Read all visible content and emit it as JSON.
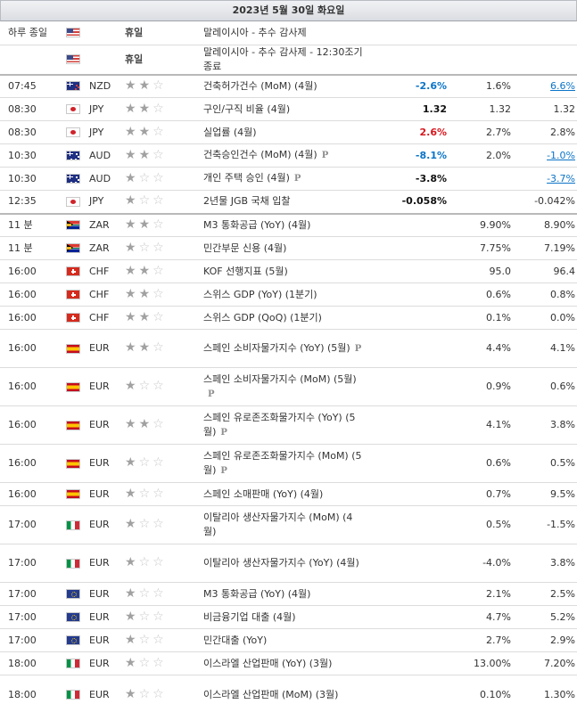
{
  "day_header": "2023년 5월 30일 화요일",
  "rows": [
    {
      "time": "하루 종일",
      "flag": "us",
      "currency": "",
      "stars": 0,
      "holiday": "휴일",
      "event": "말레이시아 - 추수 감사제",
      "pre": false,
      "actual": "",
      "actual_class": "",
      "forecast": "",
      "previous": "",
      "previous_link": false,
      "row_class": "r26"
    },
    {
      "time": "",
      "flag": "us",
      "currency": "",
      "stars": 0,
      "holiday": "휴일",
      "event": "말레이시아 - 추수 감사제 - 12:30조기 종료",
      "pre": false,
      "actual": "",
      "actual_class": "",
      "forecast": "",
      "previous": "",
      "previous_link": false,
      "row_class": "r27 sep"
    },
    {
      "time": "07:45",
      "flag": "nz",
      "currency": "NZD",
      "stars": 2,
      "holiday": "",
      "event": "건축허가건수 (MoM) (4월)",
      "pre": false,
      "actual": "-2.6%",
      "actual_class": "pos",
      "forecast": "1.6%",
      "previous": "6.6%",
      "previous_link": true,
      "row_class": "r26"
    },
    {
      "time": "08:30",
      "flag": "jp",
      "currency": "JPY",
      "stars": 2,
      "holiday": "",
      "event": "구인/구직 비율 (4월)",
      "pre": false,
      "actual": "1.32",
      "actual_class": "neutral",
      "forecast": "1.32",
      "previous": "1.32",
      "previous_link": false,
      "row_class": "r26"
    },
    {
      "time": "08:30",
      "flag": "jp",
      "currency": "JPY",
      "stars": 2,
      "holiday": "",
      "event": "실업률 (4월)",
      "pre": false,
      "actual": "2.6%",
      "actual_class": "neg",
      "forecast": "2.7%",
      "previous": "2.8%",
      "previous_link": false,
      "row_class": "r26"
    },
    {
      "time": "10:30",
      "flag": "au",
      "currency": "AUD",
      "stars": 2,
      "holiday": "",
      "event": "건축승인건수 (MoM) (4월)",
      "pre": true,
      "actual": "-8.1%",
      "actual_class": "pos",
      "forecast": "2.0%",
      "previous": "-1.0%",
      "previous_link": true,
      "row_class": "r26"
    },
    {
      "time": "10:30",
      "flag": "au",
      "currency": "AUD",
      "stars": 1,
      "holiday": "",
      "event": "개인 주택 승인 (4월)",
      "pre": true,
      "actual": "-3.8%",
      "actual_class": "neutral",
      "forecast": "",
      "previous": "-3.7%",
      "previous_link": true,
      "row_class": "r26"
    },
    {
      "time": "12:35",
      "flag": "jp",
      "currency": "JPY",
      "stars": 1,
      "holiday": "",
      "event": "2년물 JGB 국채 입찰",
      "pre": false,
      "actual": "-0.058%",
      "actual_class": "neutral",
      "forecast": "",
      "previous": "-0.042%",
      "previous_link": false,
      "row_class": "r26 sep"
    },
    {
      "time": "11 분",
      "flag": "za",
      "currency": "ZAR",
      "stars": 2,
      "holiday": "",
      "event": "M3 통화공급 (YoY) (4월)",
      "pre": false,
      "actual": "",
      "actual_class": "",
      "forecast": "9.90%",
      "previous": "8.90%",
      "previous_link": false,
      "row_class": "r26"
    },
    {
      "time": "11 분",
      "flag": "za",
      "currency": "ZAR",
      "stars": 1,
      "holiday": "",
      "event": "민간부문 신용 (4월)",
      "pre": false,
      "actual": "",
      "actual_class": "",
      "forecast": "7.75%",
      "previous": "7.19%",
      "previous_link": false,
      "row_class": "r26"
    },
    {
      "time": "16:00",
      "flag": "ch",
      "currency": "CHF",
      "stars": 2,
      "holiday": "",
      "event": "KOF 선행지표 (5월)",
      "pre": false,
      "actual": "",
      "actual_class": "",
      "forecast": "95.0",
      "previous": "96.4",
      "previous_link": false,
      "row_class": "r26"
    },
    {
      "time": "16:00",
      "flag": "ch",
      "currency": "CHF",
      "stars": 2,
      "holiday": "",
      "event": "스위스 GDP (YoY) (1분기)",
      "pre": false,
      "actual": "",
      "actual_class": "",
      "forecast": "0.6%",
      "previous": "0.8%",
      "previous_link": false,
      "row_class": "r26"
    },
    {
      "time": "16:00",
      "flag": "ch",
      "currency": "CHF",
      "stars": 2,
      "holiday": "",
      "event": "스위스 GDP (QoQ) (1분기)",
      "pre": false,
      "actual": "",
      "actual_class": "",
      "forecast": "0.1%",
      "previous": "0.0%",
      "previous_link": false,
      "row_class": "r26"
    },
    {
      "time": "16:00",
      "flag": "es",
      "currency": "EUR",
      "stars": 2,
      "holiday": "",
      "event": "스페인 소비자물가지수 (YoY) (5월)",
      "pre": true,
      "actual": "",
      "actual_class": "",
      "forecast": "4.4%",
      "previous": "4.1%",
      "previous_link": false,
      "row_class": "r43"
    },
    {
      "time": "16:00",
      "flag": "es",
      "currency": "EUR",
      "stars": 1,
      "holiday": "",
      "event": "스페인 소비자물가지수 (MoM) (5월)",
      "pre": true,
      "actual": "",
      "actual_class": "",
      "forecast": "0.9%",
      "previous": "0.6%",
      "previous_link": false,
      "row_class": "r43"
    },
    {
      "time": "16:00",
      "flag": "es",
      "currency": "EUR",
      "stars": 2,
      "holiday": "",
      "event": "스페인 유로존조화물가지수 (YoY) (5월)",
      "pre": true,
      "actual": "",
      "actual_class": "",
      "forecast": "4.1%",
      "previous": "3.8%",
      "previous_link": false,
      "row_class": "r43"
    },
    {
      "time": "16:00",
      "flag": "es",
      "currency": "EUR",
      "stars": 1,
      "holiday": "",
      "event": "스페인 유로존조화물가지수 (MoM) (5월)",
      "pre": true,
      "actual": "",
      "actual_class": "",
      "forecast": "0.6%",
      "previous": "0.5%",
      "previous_link": false,
      "row_class": "r43"
    },
    {
      "time": "16:00",
      "flag": "es",
      "currency": "EUR",
      "stars": 1,
      "holiday": "",
      "event": "스페인 소매판매 (YoY) (4월)",
      "pre": false,
      "actual": "",
      "actual_class": "",
      "forecast": "0.7%",
      "previous": "9.5%",
      "previous_link": false,
      "row_class": "r26"
    },
    {
      "time": "17:00",
      "flag": "it",
      "currency": "EUR",
      "stars": 1,
      "holiday": "",
      "event": "이탈리아 생산자물가지수 (MoM) (4월)",
      "pre": false,
      "actual": "",
      "actual_class": "",
      "forecast": "0.5%",
      "previous": "-1.5%",
      "previous_link": false,
      "row_class": "r43"
    },
    {
      "time": "17:00",
      "flag": "it",
      "currency": "EUR",
      "stars": 1,
      "holiday": "",
      "event": "이탈리아 생산자물가지수 (YoY) (4월)",
      "pre": false,
      "actual": "",
      "actual_class": "",
      "forecast": "-4.0%",
      "previous": "3.8%",
      "previous_link": false,
      "row_class": "r43"
    },
    {
      "time": "17:00",
      "flag": "eu",
      "currency": "EUR",
      "stars": 1,
      "holiday": "",
      "event": "M3 통화공급 (YoY) (4월)",
      "pre": false,
      "actual": "",
      "actual_class": "",
      "forecast": "2.1%",
      "previous": "2.5%",
      "previous_link": false,
      "row_class": "r26"
    },
    {
      "time": "17:00",
      "flag": "eu",
      "currency": "EUR",
      "stars": 1,
      "holiday": "",
      "event": "비금융기업 대출 (4월)",
      "pre": false,
      "actual": "",
      "actual_class": "",
      "forecast": "4.7%",
      "previous": "5.2%",
      "previous_link": false,
      "row_class": "r26"
    },
    {
      "time": "17:00",
      "flag": "eu",
      "currency": "EUR",
      "stars": 1,
      "holiday": "",
      "event": "민간대출 (YoY)",
      "pre": false,
      "actual": "",
      "actual_class": "",
      "forecast": "2.7%",
      "previous": "2.9%",
      "previous_link": false,
      "row_class": "r26"
    },
    {
      "time": "18:00",
      "flag": "it",
      "currency": "EUR",
      "stars": 1,
      "holiday": "",
      "event": "이스라엘 산업판매 (YoY) (3월)",
      "pre": false,
      "actual": "",
      "actual_class": "",
      "forecast": "13.00%",
      "previous": "7.20%",
      "previous_link": false,
      "row_class": "r26"
    },
    {
      "time": "18:00",
      "flag": "it",
      "currency": "EUR",
      "stars": 1,
      "holiday": "",
      "event": "이스라엘 산업판매 (MoM) (3월)",
      "pre": false,
      "actual": "",
      "actual_class": "",
      "forecast": "0.10%",
      "previous": "1.30%",
      "previous_link": false,
      "row_class": "r44"
    }
  ],
  "pre_release_glyph": "P",
  "colors": {
    "positive": "#0b74c7",
    "negative": "#d6181f",
    "header_bg": "#dadde2"
  }
}
